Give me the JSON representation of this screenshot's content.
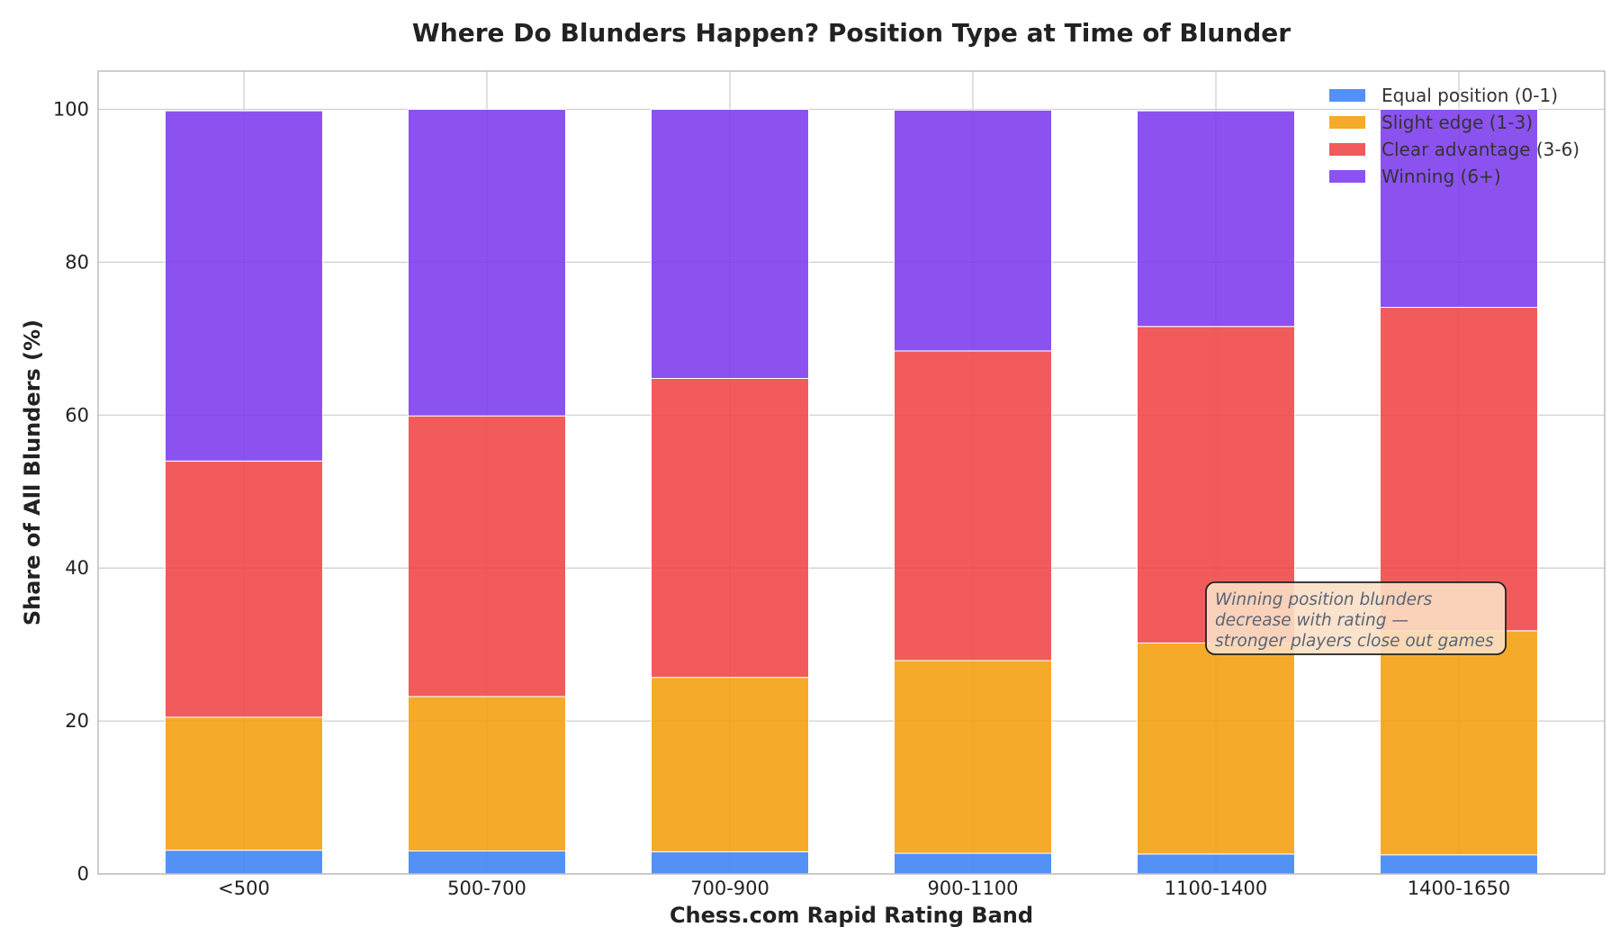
{
  "chart_data": {
    "type": "bar",
    "stacked": true,
    "title": "Where Do Blunders Happen? Position Type at Time of Blunder",
    "xlabel": "Chess.com Rapid Rating Band",
    "ylabel": "Share of All Blunders (%)",
    "ylim": [
      0,
      105
    ],
    "yticks": [
      "0",
      "20",
      "40",
      "60",
      "80",
      "100"
    ],
    "grid": true,
    "legend_position": "top-right",
    "categories": [
      "<500",
      "500-700",
      "700-900",
      "900-1100",
      "1100-1400",
      "1400-1650"
    ],
    "series": [
      {
        "name": "Equal position (0-1)",
        "color": "#3b82f6",
        "values": [
          3.1,
          3.0,
          2.9,
          2.7,
          2.6,
          2.5
        ]
      },
      {
        "name": "Slight edge (1-3)",
        "color": "#f59e0b",
        "values": [
          17.4,
          20.2,
          22.8,
          25.2,
          27.6,
          29.3
        ]
      },
      {
        "name": "Clear advantage (3-6)",
        "color": "#ef4444",
        "values": [
          33.5,
          36.7,
          39.1,
          40.5,
          41.4,
          42.3
        ]
      },
      {
        "name": "Winning (6+)",
        "color": "#7c3aed",
        "values": [
          45.8,
          40.1,
          35.2,
          31.5,
          28.2,
          25.9
        ]
      }
    ],
    "annotation": {
      "lines": [
        "Winning position blunders",
        "decrease with rating —",
        "stronger players close out games"
      ]
    }
  }
}
